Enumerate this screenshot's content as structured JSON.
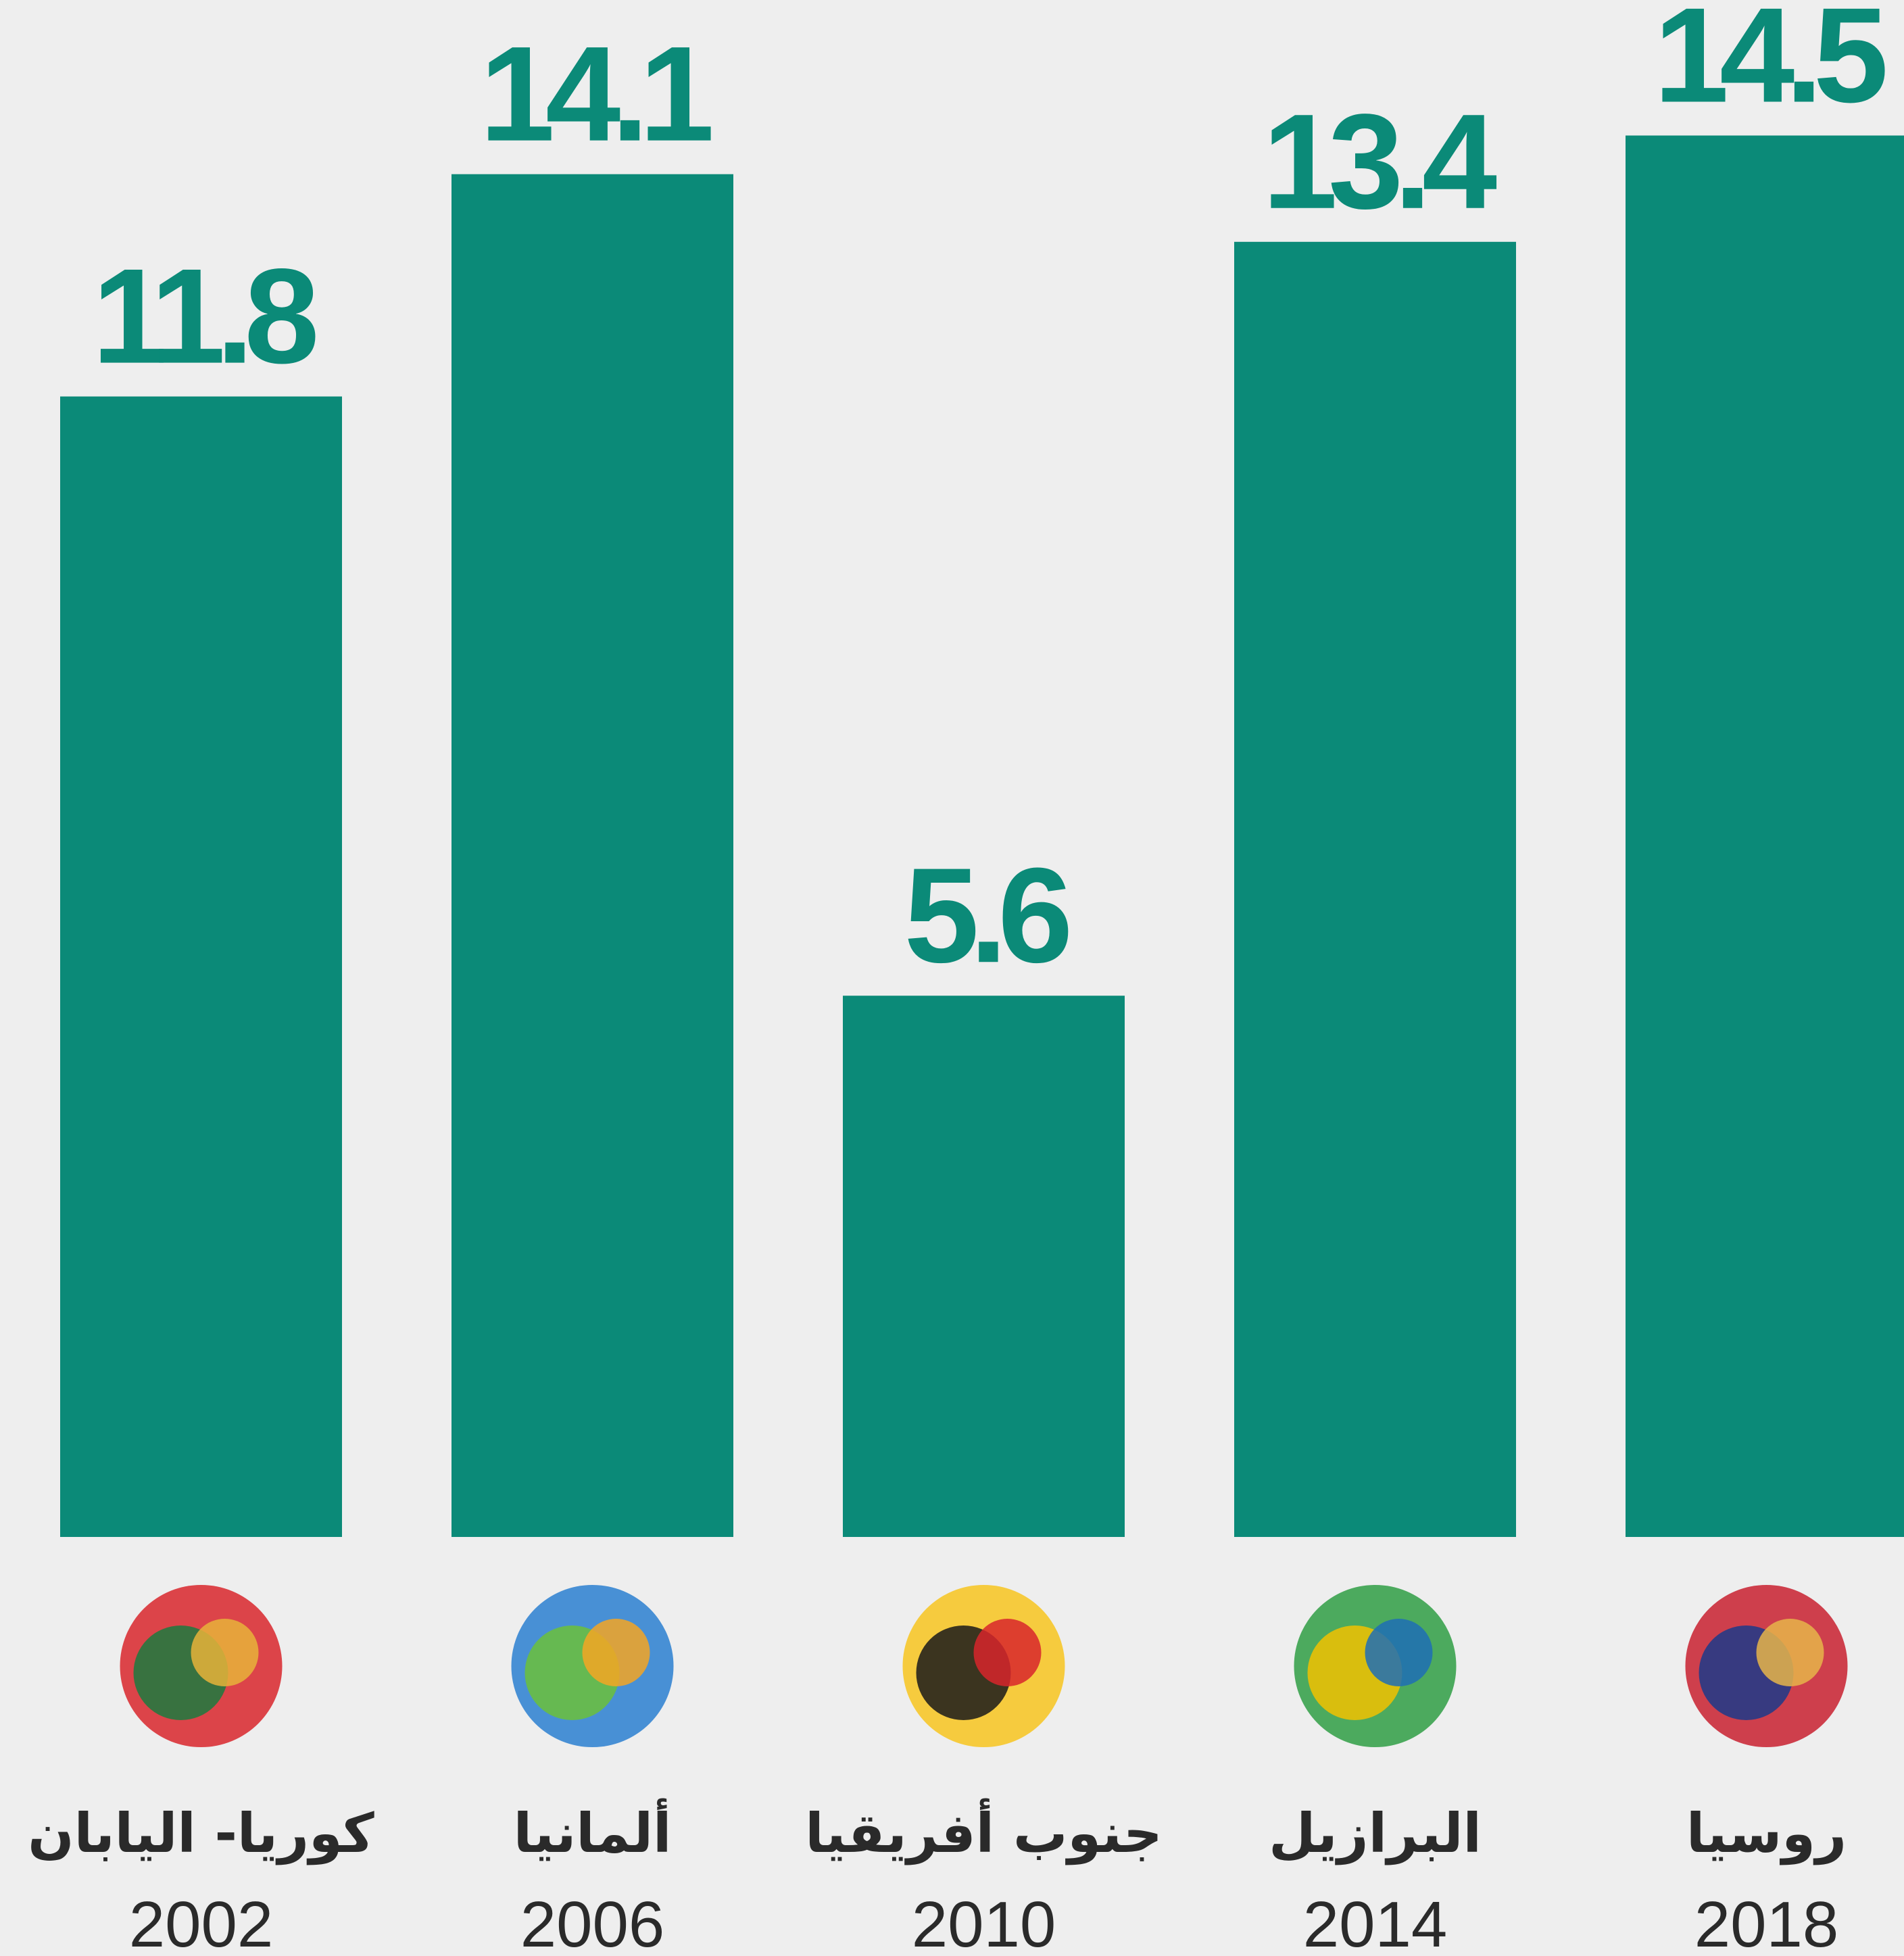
{
  "chart_data": {
    "type": "bar",
    "categories": [
      "كوريا- اليابان",
      "ألمانيا",
      "جنوب أفريقيا",
      "البرازيل",
      "روسيا"
    ],
    "years": [
      "2002",
      "2006",
      "2010",
      "2014",
      "2018"
    ],
    "values": [
      11.8,
      14.1,
      5.6,
      13.4,
      14.5
    ],
    "color": "#0b8a78",
    "ylim": [
      0,
      16
    ]
  }
}
